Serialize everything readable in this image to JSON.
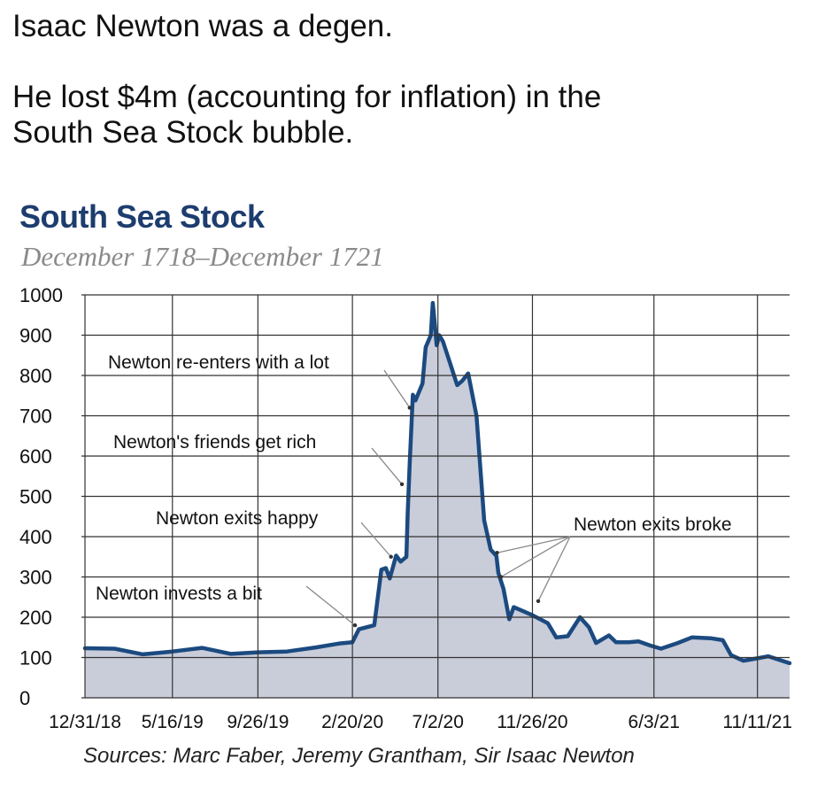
{
  "post": {
    "line1": "Isaac Newton was a degen.",
    "line2": "He lost $4m (accounting for inflation) in the",
    "line3": "South Sea Stock bubble."
  },
  "chart_data": {
    "type": "area",
    "title": "South Sea Stock",
    "subtitle": "December 1718–December 1721",
    "source": "Sources: Marc Faber, Jeremy Grantham, Sir Isaac Newton",
    "xlabel": "",
    "ylabel": "",
    "ylim": [
      0,
      1000
    ],
    "yticks": [
      0,
      100,
      200,
      300,
      400,
      500,
      600,
      700,
      800,
      900,
      1000
    ],
    "xlim": [
      "1718-12-31",
      "1721-12-31"
    ],
    "xticks": [
      "12/31/18",
      "5/16/19",
      "9/26/19",
      "2/20/20",
      "7/2/20",
      "11/26/20",
      "6/3/21",
      "11/11/21"
    ],
    "xtick_dates": [
      "1718-12-31",
      "1719-05-16",
      "1719-09-26",
      "1720-02-20",
      "1720-07-02",
      "1720-11-26",
      "1721-06-03",
      "1721-11-11"
    ],
    "grid": true,
    "colors": {
      "line": "#1b4a80",
      "fill": "#c4c8d6",
      "grid": "#333333",
      "annotation": "#888888"
    },
    "series": [
      {
        "points": [
          [
            "1718-12-31",
            123
          ],
          [
            "1719-02-15",
            122
          ],
          [
            "1719-03-31",
            108
          ],
          [
            "1719-05-16",
            115
          ],
          [
            "1719-07-01",
            124
          ],
          [
            "1719-08-15",
            109
          ],
          [
            "1719-09-26",
            113
          ],
          [
            "1719-11-10",
            115
          ],
          [
            "1719-12-25",
            125
          ],
          [
            "1720-01-31",
            135
          ],
          [
            "1720-02-20",
            138
          ],
          [
            "1720-03-01",
            170
          ],
          [
            "1720-03-25",
            180
          ],
          [
            "1720-04-05",
            318
          ],
          [
            "1720-04-12",
            322
          ],
          [
            "1720-04-18",
            296
          ],
          [
            "1720-04-28",
            353
          ],
          [
            "1720-05-05",
            338
          ],
          [
            "1720-05-14",
            350
          ],
          [
            "1720-05-16",
            460
          ],
          [
            "1720-05-19",
            580
          ],
          [
            "1720-05-24",
            752
          ],
          [
            "1720-05-28",
            738
          ],
          [
            "1720-06-08",
            780
          ],
          [
            "1720-06-13",
            870
          ],
          [
            "1720-06-21",
            900
          ],
          [
            "1720-06-24",
            980
          ],
          [
            "1720-06-27",
            930
          ],
          [
            "1720-06-30",
            875
          ],
          [
            "1720-07-04",
            900
          ],
          [
            "1720-07-10",
            884
          ],
          [
            "1720-08-01",
            776
          ],
          [
            "1720-08-09",
            787
          ],
          [
            "1720-08-18",
            805
          ],
          [
            "1720-08-31",
            700
          ],
          [
            "1720-09-12",
            440
          ],
          [
            "1720-09-22",
            368
          ],
          [
            "1720-10-01",
            352
          ],
          [
            "1720-10-04",
            310
          ],
          [
            "1720-10-12",
            270
          ],
          [
            "1720-10-21",
            195
          ],
          [
            "1720-10-28",
            225
          ],
          [
            "1720-11-26",
            205
          ],
          [
            "1720-12-20",
            185
          ],
          [
            "1721-01-02",
            150
          ],
          [
            "1721-01-20",
            153
          ],
          [
            "1721-02-08",
            200
          ],
          [
            "1721-02-22",
            175
          ],
          [
            "1721-03-05",
            136
          ],
          [
            "1721-03-25",
            155
          ],
          [
            "1721-04-05",
            138
          ],
          [
            "1721-04-25",
            138
          ],
          [
            "1721-05-10",
            140
          ],
          [
            "1721-05-28",
            130
          ],
          [
            "1721-06-14",
            122
          ],
          [
            "1721-07-10",
            136
          ],
          [
            "1721-08-01",
            150
          ],
          [
            "1721-08-30",
            148
          ],
          [
            "1721-09-18",
            143
          ],
          [
            "1721-10-01",
            106
          ],
          [
            "1721-10-20",
            92
          ],
          [
            "1721-11-11",
            98
          ],
          [
            "1721-11-28",
            103
          ],
          [
            "1721-12-31",
            86
          ]
        ]
      }
    ],
    "annotations": [
      {
        "text": "Newton invests a bit",
        "target": [
          "1720-02-24",
          180
        ]
      },
      {
        "text": "Newton exits happy",
        "target": [
          "1720-04-20",
          350
        ]
      },
      {
        "text": "Newton's friends get rich",
        "target": [
          "1720-05-07",
          530
        ]
      },
      {
        "text": "Newton re-enters with a lot",
        "target": [
          "1720-05-19",
          720
        ]
      },
      {
        "text": "Newton exits broke",
        "targets": [
          [
            "1720-10-02",
            360
          ],
          [
            "1720-10-08",
            300
          ],
          [
            "1720-12-05",
            240
          ]
        ]
      }
    ]
  }
}
